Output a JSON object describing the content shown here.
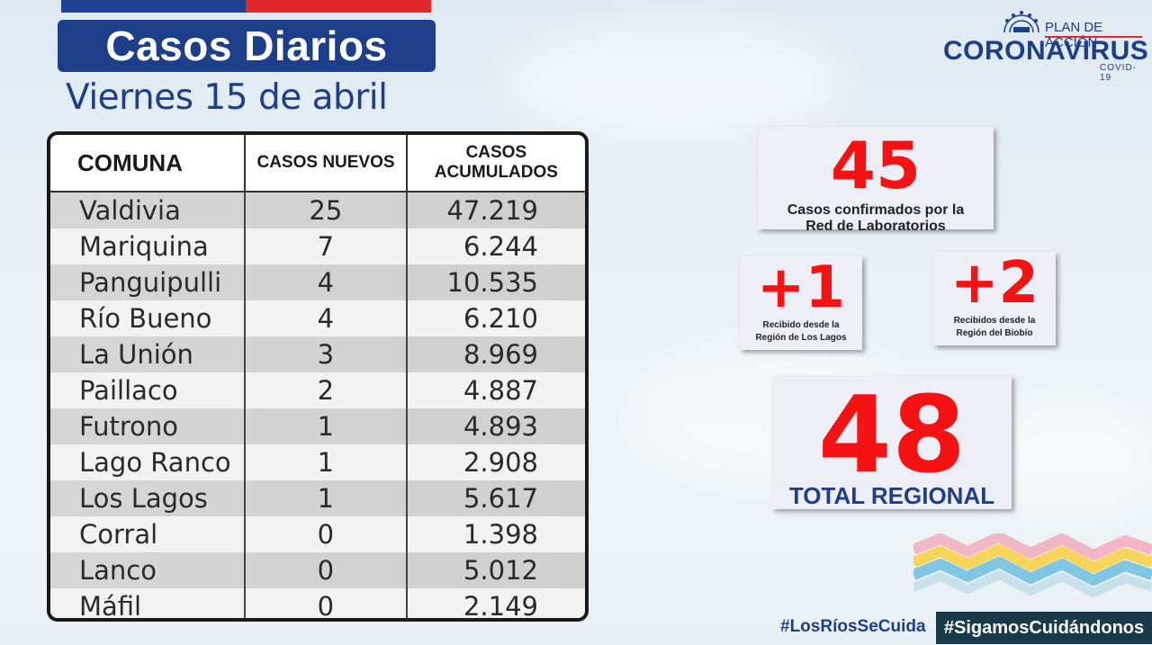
{
  "header": {
    "title": "Casos Diarios",
    "date": "Viernes 15 de abril"
  },
  "logo": {
    "small": "PLAN DE ACCIÓN",
    "big": "CORONAVIRUS",
    "covid": "COVID-19",
    "icon": "government-seal-icon"
  },
  "table": {
    "headers": [
      "COMUNA",
      "CASOS NUEVOS",
      "CASOS ACUMULADOS"
    ],
    "rows": [
      {
        "comuna": "Valdivia",
        "nuevos": "25",
        "acumulados": "47.219"
      },
      {
        "comuna": "Mariquina",
        "nuevos": "7",
        "acumulados": "6.244"
      },
      {
        "comuna": "Panguipulli",
        "nuevos": "4",
        "acumulados": "10.535"
      },
      {
        "comuna": "Río Bueno",
        "nuevos": "4",
        "acumulados": "6.210"
      },
      {
        "comuna": "La Unión",
        "nuevos": "3",
        "acumulados": "8.969"
      },
      {
        "comuna": "Paillaco",
        "nuevos": "2",
        "acumulados": "4.887"
      },
      {
        "comuna": "Futrono",
        "nuevos": "1",
        "acumulados": "4.893"
      },
      {
        "comuna": "Lago Ranco",
        "nuevos": "1",
        "acumulados": "2.908"
      },
      {
        "comuna": "Los Lagos",
        "nuevos": "1",
        "acumulados": "5.617"
      },
      {
        "comuna": "Corral",
        "nuevos": "0",
        "acumulados": "1.398"
      },
      {
        "comuna": "Lanco",
        "nuevos": "0",
        "acumulados": "5.012"
      },
      {
        "comuna": "Máfil",
        "nuevos": "0",
        "acumulados": "2.149"
      }
    ]
  },
  "cards": {
    "confirmed": {
      "value": "45",
      "label_line1": "Casos confirmados  por la",
      "label_line2": "Red de Laboratorios"
    },
    "los_lagos": {
      "value": "+1",
      "label_line1": "Recibido  desde la",
      "label_line2": "Región de Los Lagos"
    },
    "biobio": {
      "value": "+2",
      "label_line1": "Recibidos  desde la",
      "label_line2": "Región  del Biobío"
    },
    "total": {
      "value": "48",
      "label": "TOTAL REGIONAL"
    }
  },
  "footer": {
    "hashtag1": "#LosRíosSeCuida",
    "hashtag2": "#SigamosCuidándonos"
  },
  "colors": {
    "navy": "#1d3f8a",
    "red": "#e0282b",
    "number_red": "#f51212"
  }
}
